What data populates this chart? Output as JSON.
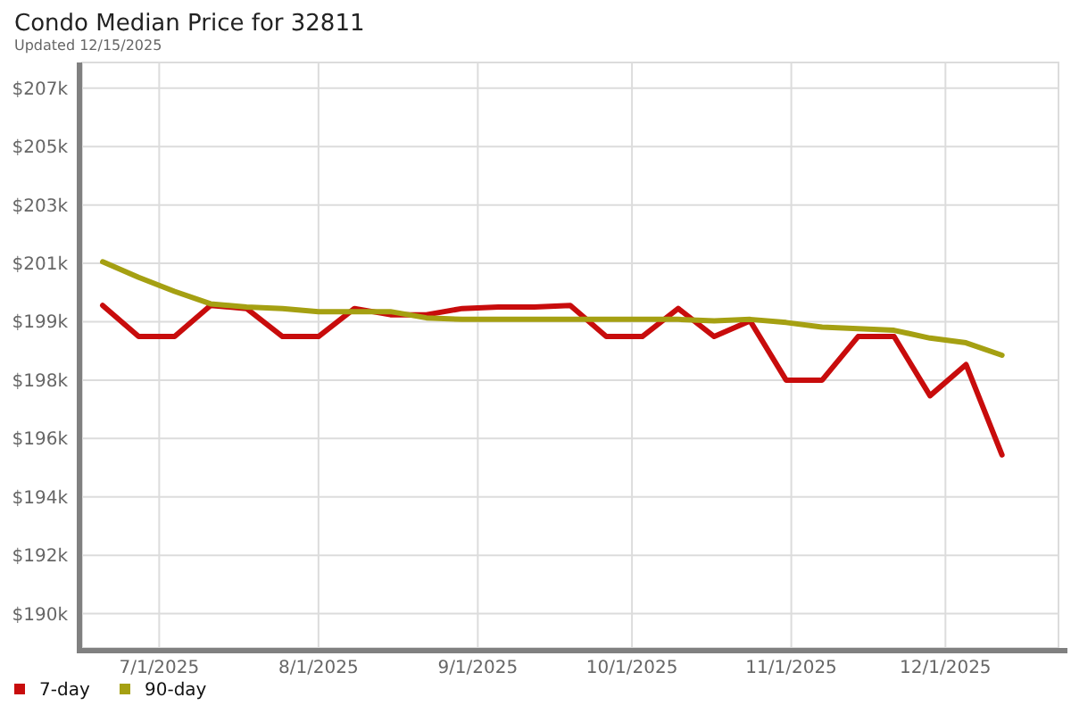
{
  "chart_data": {
    "type": "line",
    "title": "Condo Median Price for 32811",
    "subtitle": "Updated 12/15/2025",
    "x": [
      "2025-06-20",
      "2025-06-27",
      "2025-07-04",
      "2025-07-11",
      "2025-07-18",
      "2025-07-25",
      "2025-08-01",
      "2025-08-08",
      "2025-08-15",
      "2025-08-22",
      "2025-08-29",
      "2025-09-05",
      "2025-09-12",
      "2025-09-19",
      "2025-09-26",
      "2025-10-03",
      "2025-10-10",
      "2025-10-17",
      "2025-10-24",
      "2025-10-31",
      "2025-11-07",
      "2025-11-14",
      "2025-11-21",
      "2025-11-28",
      "2025-12-05",
      "2025-12-12"
    ],
    "series": [
      {
        "name": "7-day",
        "color": "#c80c0c",
        "values": [
          199900,
          198900,
          198900,
          199900,
          199800,
          198900,
          198900,
          199800,
          199600,
          199600,
          199800,
          199850,
          199850,
          199900,
          198900,
          198900,
          199800,
          198900,
          199400,
          197500,
          197500,
          198900,
          198900,
          197000,
          198000,
          195100
        ]
      },
      {
        "name": "90-day",
        "color": "#a5a012",
        "values": [
          201300,
          200800,
          200350,
          199950,
          199850,
          199800,
          199700,
          199700,
          199700,
          199500,
          199450,
          199450,
          199450,
          199450,
          199450,
          199450,
          199450,
          199400,
          199450,
          199350,
          199200,
          199150,
          199100,
          198850,
          198700,
          198300
        ]
      }
    ],
    "xlim": [
      "2025-06-16",
      "2025-12-23"
    ],
    "xticks": [
      {
        "value": "2025-07-01",
        "label": "7/1/2025"
      },
      {
        "value": "2025-08-01",
        "label": "8/1/2025"
      },
      {
        "value": "2025-09-01",
        "label": "9/1/2025"
      },
      {
        "value": "2025-10-01",
        "label": "10/1/2025"
      },
      {
        "value": "2025-11-01",
        "label": "11/1/2025"
      },
      {
        "value": "2025-12-01",
        "label": "12/1/2025"
      }
    ],
    "ylim": [
      188900,
      207700
    ],
    "yticks": [
      {
        "value": 190000,
        "label": "$190k"
      },
      {
        "value": 191875,
        "label": "$192k"
      },
      {
        "value": 193750,
        "label": "$194k"
      },
      {
        "value": 195625,
        "label": "$196k"
      },
      {
        "value": 197500,
        "label": "$198k"
      },
      {
        "value": 199375,
        "label": "$199k"
      },
      {
        "value": 201250,
        "label": "$201k"
      },
      {
        "value": 203125,
        "label": "$203k"
      },
      {
        "value": 205000,
        "label": "$205k"
      },
      {
        "value": 206875,
        "label": "$207k"
      }
    ],
    "grid": true,
    "legend": "bottom left",
    "line_style": "solid"
  }
}
